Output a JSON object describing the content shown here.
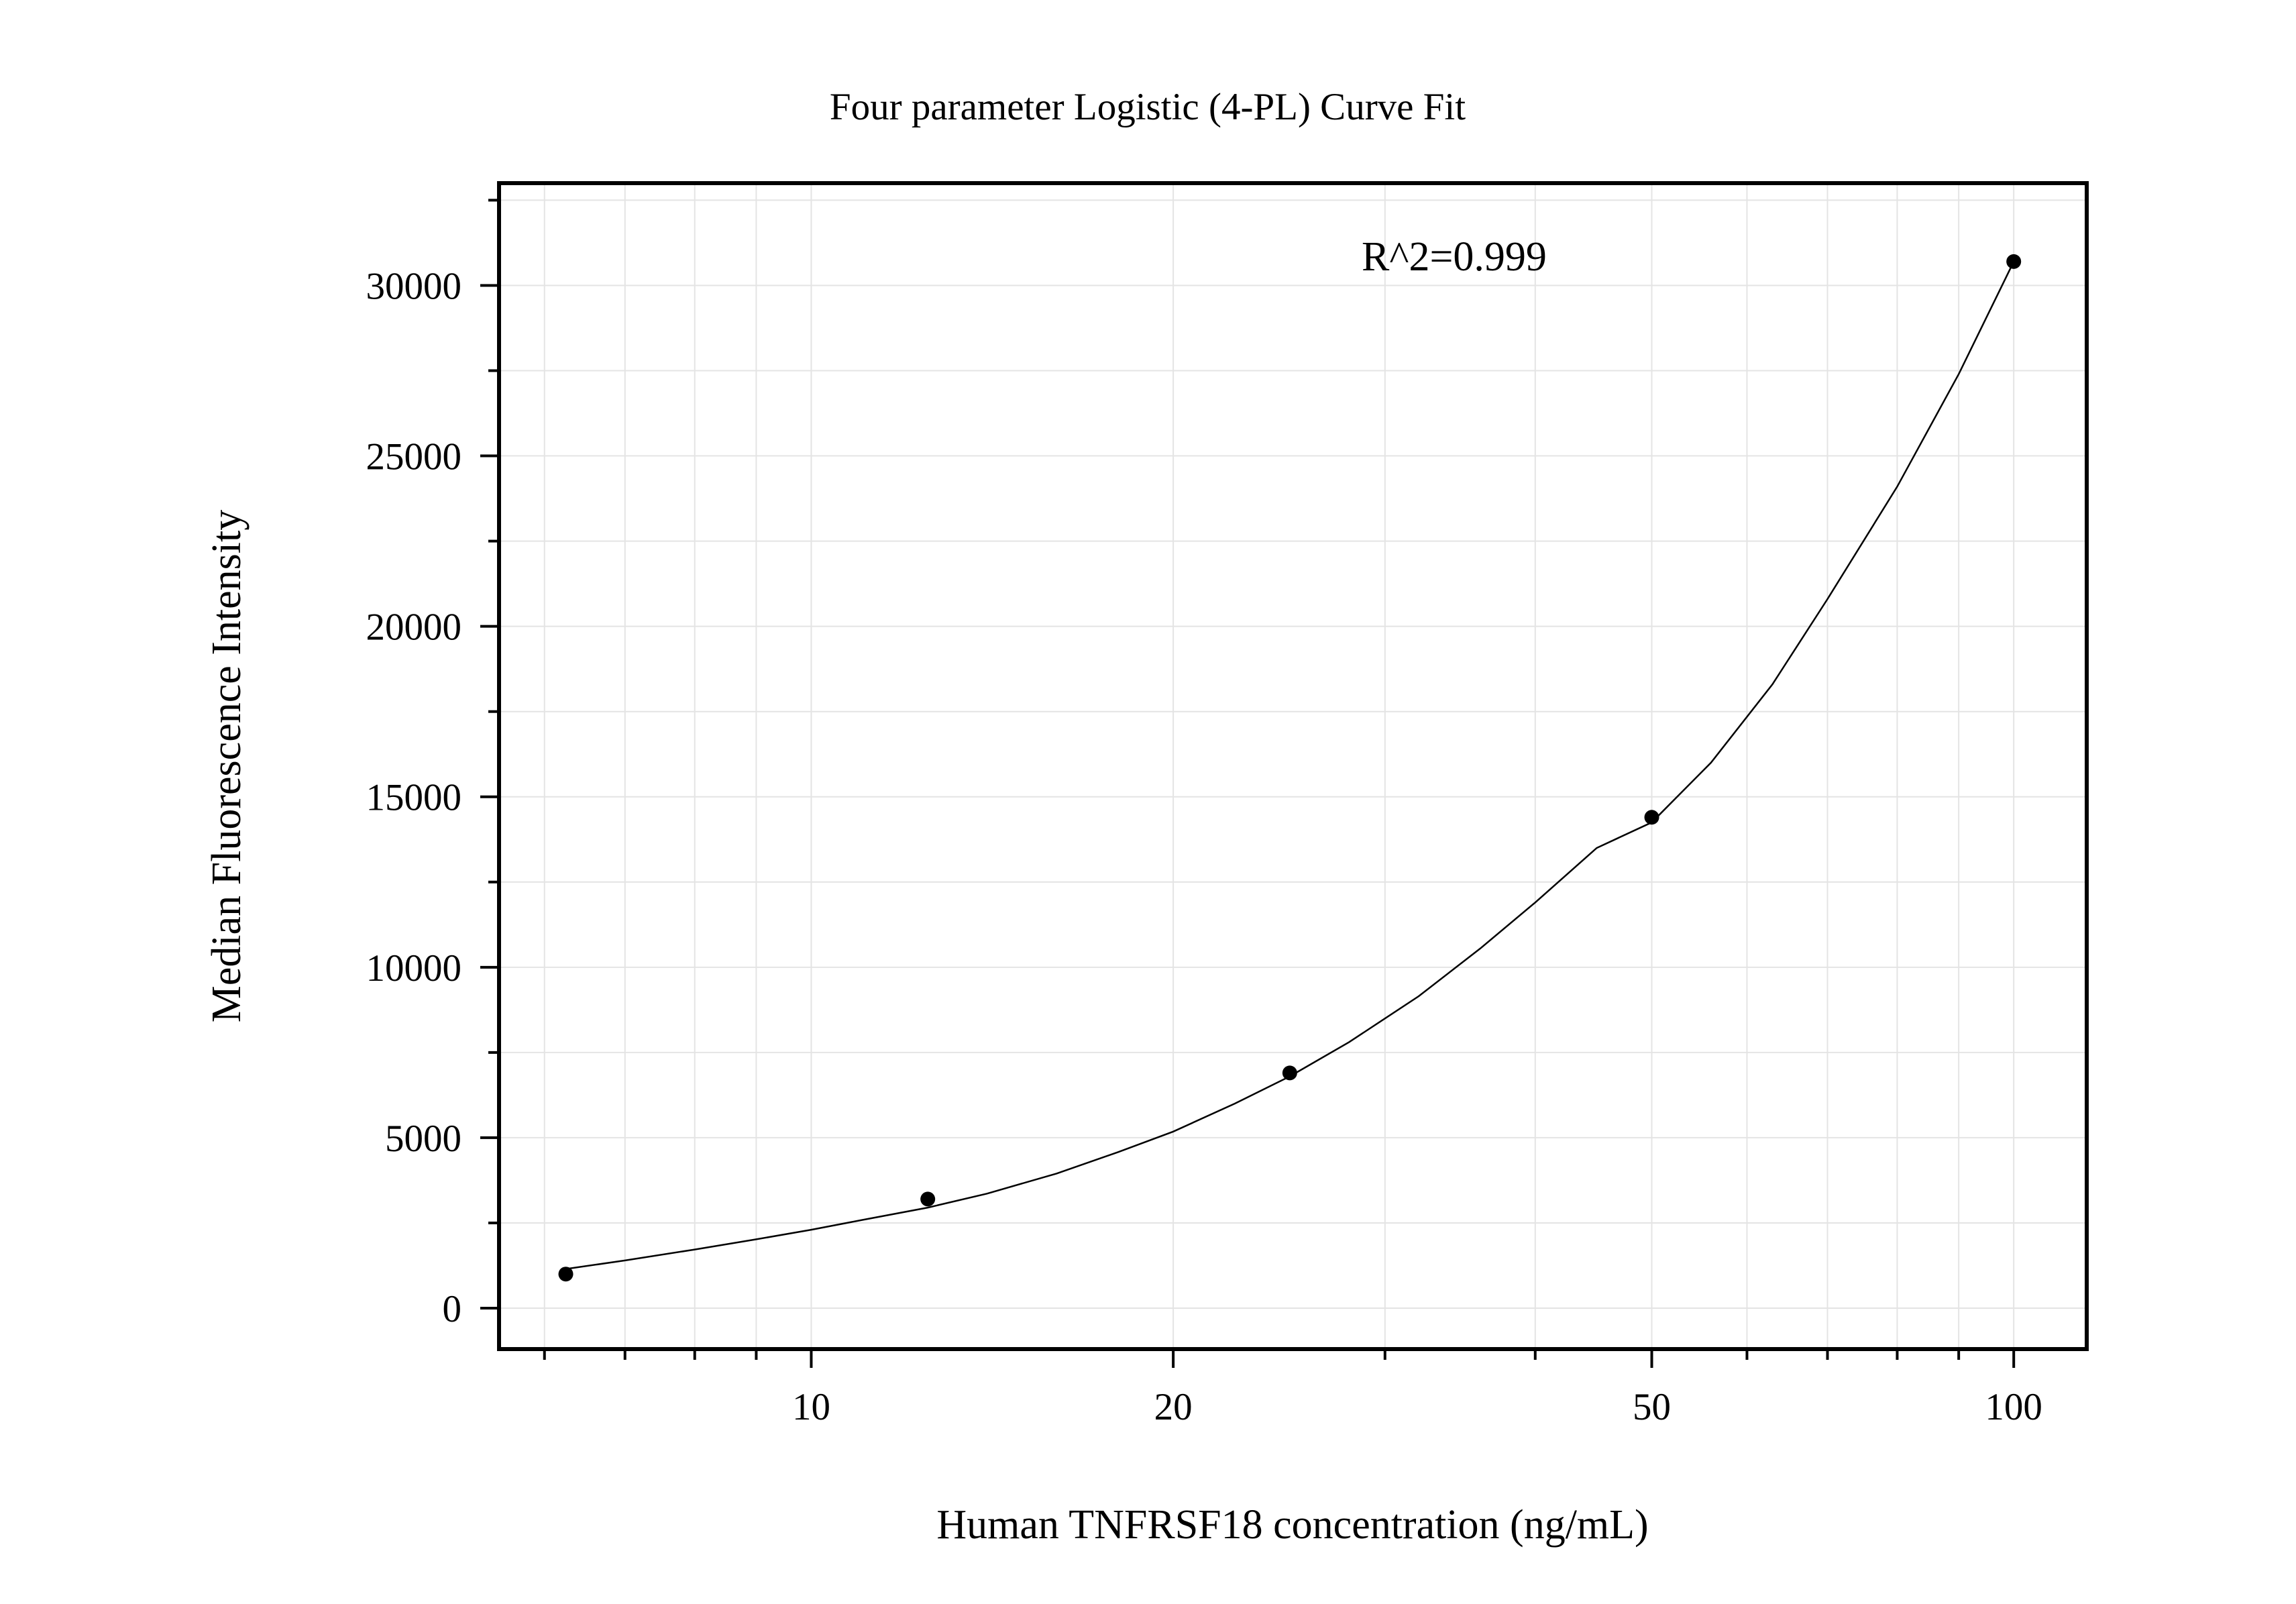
{
  "chart_data": {
    "type": "scatter",
    "title": "Four parameter Logistic (4-PL) Curve Fit",
    "xlabel": "Human TNFRSF18 concentration (ng/mL)",
    "ylabel": "Median Fluorescence Intensity",
    "x_scale": "log",
    "xlim": [
      5.5,
      115
    ],
    "ylim": [
      -1200,
      33000
    ],
    "x_ticks": [
      10,
      20,
      50,
      100
    ],
    "x_tick_labels": [
      "10",
      "20",
      "50",
      "100"
    ],
    "y_ticks": [
      0,
      5000,
      10000,
      15000,
      20000,
      25000,
      30000
    ],
    "y_tick_labels": [
      "0",
      "5000",
      "10000",
      "15000",
      "20000",
      "25000",
      "30000"
    ],
    "grid": true,
    "annotation": "R^2=0.999",
    "points": {
      "x": [
        6.25,
        12.5,
        25,
        50,
        100
      ],
      "y": [
        1000,
        3200,
        6900,
        14400,
        30700
      ]
    },
    "fit": {
      "model": "4-PL",
      "x": [
        6.25,
        7,
        8,
        9,
        10,
        11,
        12.5,
        14,
        16,
        18,
        20,
        22.5,
        25,
        28,
        32,
        36,
        40,
        45,
        50,
        56,
        63,
        70,
        80,
        90,
        100
      ],
      "y": [
        1150,
        1400,
        1720,
        2020,
        2300,
        2580,
        2950,
        3360,
        3950,
        4580,
        5180,
        6000,
        6800,
        7800,
        9150,
        10550,
        11900,
        13500,
        14250,
        16000,
        18300,
        20800,
        24100,
        27400,
        30700
      ]
    }
  }
}
